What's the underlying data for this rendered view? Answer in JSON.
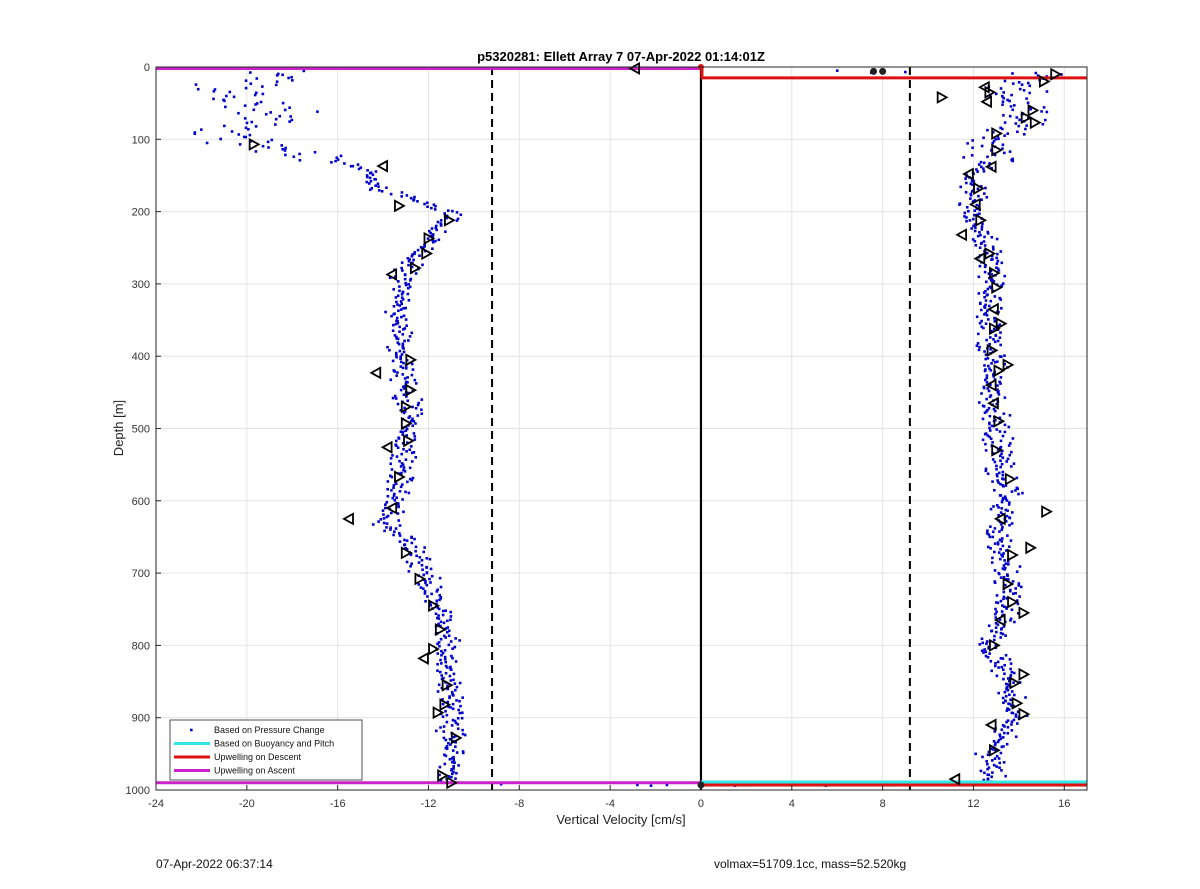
{
  "chart_data": {
    "type": "scatter",
    "title": "p5320281: Ellett Array 7 07-Apr-2022 01:14:01Z",
    "xlabel": "Vertical Velocity [cm/s]",
    "ylabel": "Depth [m]",
    "xlim": [
      -24,
      17
    ],
    "ylim": [
      0,
      1000
    ],
    "y_reversed": true,
    "x_ticks": [
      -24,
      -20,
      -16,
      -12,
      -8,
      -4,
      0,
      4,
      8,
      12,
      16
    ],
    "y_ticks": [
      0,
      100,
      200,
      300,
      400,
      500,
      600,
      700,
      800,
      900,
      1000
    ],
    "grid": true,
    "legend_position": "bottom-left",
    "legend": [
      {
        "label": "Based on Pressure Change",
        "color": "#0000cc",
        "kind": "dot"
      },
      {
        "label": "Based on Buoyancy and Pitch",
        "color": "#33e6e6",
        "kind": "line"
      },
      {
        "label": "Upwelling on Descent",
        "color": "#dd1111",
        "kind": "line"
      },
      {
        "label": "Upwelling on Ascent",
        "color": "#cc22cc",
        "kind": "line"
      }
    ],
    "reference_lines": {
      "vertical_solid": [
        0
      ],
      "vertical_dashed": [
        -9.2,
        9.2
      ]
    },
    "upwelling_on_descent": {
      "x": [
        0,
        17
      ],
      "depth": [
        15,
        15
      ],
      "bottom_depth": 993
    },
    "upwelling_on_ascent": {
      "x": [
        -24,
        0
      ],
      "depth": [
        2,
        2
      ],
      "bottom_depth": 990
    },
    "buoyancy_pitch_line": {
      "x": [
        0,
        17
      ],
      "depth": [
        989,
        989
      ]
    },
    "descent_profile": {
      "depth": [
        0,
        20,
        40,
        60,
        80,
        100,
        130,
        160,
        200,
        250,
        300,
        350,
        400,
        450,
        500,
        550,
        600,
        650,
        700,
        750,
        800,
        850,
        900,
        950,
        990
      ],
      "velocity": [
        15.5,
        14.5,
        13.5,
        14.5,
        14.2,
        13.0,
        12.5,
        12.0,
        12.0,
        12.5,
        12.8,
        12.8,
        12.8,
        12.8,
        13.0,
        13.2,
        13.5,
        13.0,
        13.5,
        13.5,
        12.7,
        13.5,
        13.8,
        12.8,
        12.8
      ]
    },
    "ascent_profile": {
      "depth": [
        5,
        30,
        60,
        90,
        110,
        140,
        170,
        200,
        240,
        280,
        320,
        360,
        400,
        440,
        480,
        520,
        560,
        600,
        630,
        660,
        700,
        740,
        780,
        820,
        860,
        900,
        950,
        990
      ],
      "velocity": [
        -18.0,
        -21.0,
        -19.0,
        -20.5,
        -19.5,
        -15.0,
        -14.0,
        -11.0,
        -12.0,
        -13.0,
        -13.3,
        -13.2,
        -13.3,
        -13.0,
        -12.8,
        -13.0,
        -13.2,
        -13.5,
        -14.0,
        -12.8,
        -12.2,
        -11.7,
        -11.3,
        -11.2,
        -11.0,
        -11.0,
        -11.0,
        -11.0
      ]
    },
    "surface_points": [
      {
        "x": -2.8,
        "depth": 2
      },
      {
        "x": -0.8,
        "depth": 1
      },
      {
        "x": 6.0,
        "depth": 5
      },
      {
        "x": 7.5,
        "depth": 8
      },
      {
        "x": 8.0,
        "depth": 6
      },
      {
        "x": 9.0,
        "depth": 7
      }
    ],
    "bottom_points": [
      {
        "x": -1.5,
        "depth": 993
      },
      {
        "x": -2.2,
        "depth": 994
      },
      {
        "x": -2.8,
        "depth": 993
      },
      {
        "x": -8.8,
        "depth": 992
      },
      {
        "x": 1.5,
        "depth": 994
      },
      {
        "x": 5.5,
        "depth": 994
      }
    ],
    "descent_triangles": [
      {
        "x": 15.6,
        "depth": 10,
        "dir": "right"
      },
      {
        "x": 15.1,
        "depth": 20,
        "dir": "right"
      },
      {
        "x": 12.5,
        "depth": 28,
        "dir": "left"
      },
      {
        "x": 12.7,
        "depth": 35,
        "dir": "right"
      },
      {
        "x": 10.6,
        "depth": 42,
        "dir": "right"
      },
      {
        "x": 12.6,
        "depth": 48,
        "dir": "left"
      },
      {
        "x": 14.6,
        "depth": 60,
        "dir": "right"
      },
      {
        "x": 14.3,
        "depth": 70,
        "dir": "right"
      },
      {
        "x": 14.7,
        "depth": 77,
        "dir": "right"
      },
      {
        "x": 13.0,
        "depth": 92,
        "dir": "right"
      },
      {
        "x": 13.0,
        "depth": 115,
        "dir": "right"
      },
      {
        "x": 12.8,
        "depth": 138,
        "dir": "left"
      },
      {
        "x": 11.8,
        "depth": 148,
        "dir": "left"
      },
      {
        "x": 12.2,
        "depth": 168,
        "dir": "right"
      },
      {
        "x": 12.1,
        "depth": 190,
        "dir": "left"
      },
      {
        "x": 12.3,
        "depth": 212,
        "dir": "right"
      },
      {
        "x": 11.5,
        "depth": 232,
        "dir": "left"
      },
      {
        "x": 12.7,
        "depth": 258,
        "dir": "right"
      },
      {
        "x": 12.3,
        "depth": 265,
        "dir": "left"
      },
      {
        "x": 12.9,
        "depth": 285,
        "dir": "right"
      },
      {
        "x": 13.0,
        "depth": 305,
        "dir": "right"
      },
      {
        "x": 12.9,
        "depth": 335,
        "dir": "left"
      },
      {
        "x": 13.2,
        "depth": 355,
        "dir": "right"
      },
      {
        "x": 12.9,
        "depth": 362,
        "dir": "right"
      },
      {
        "x": 12.8,
        "depth": 392,
        "dir": "right"
      },
      {
        "x": 13.5,
        "depth": 412,
        "dir": "right"
      },
      {
        "x": 13.1,
        "depth": 420,
        "dir": "right"
      },
      {
        "x": 12.8,
        "depth": 440,
        "dir": "left"
      },
      {
        "x": 12.9,
        "depth": 465,
        "dir": "left"
      },
      {
        "x": 13.1,
        "depth": 490,
        "dir": "right"
      },
      {
        "x": 13.0,
        "depth": 530,
        "dir": "right"
      },
      {
        "x": 13.6,
        "depth": 570,
        "dir": "right"
      },
      {
        "x": 15.2,
        "depth": 615,
        "dir": "right"
      },
      {
        "x": 13.2,
        "depth": 625,
        "dir": "left"
      },
      {
        "x": 14.5,
        "depth": 665,
        "dir": "right"
      },
      {
        "x": 13.7,
        "depth": 675,
        "dir": "right"
      },
      {
        "x": 13.5,
        "depth": 715,
        "dir": "right"
      },
      {
        "x": 13.7,
        "depth": 740,
        "dir": "right"
      },
      {
        "x": 14.2,
        "depth": 755,
        "dir": "right"
      },
      {
        "x": 13.2,
        "depth": 765,
        "dir": "left"
      },
      {
        "x": 12.9,
        "depth": 800,
        "dir": "right"
      },
      {
        "x": 14.2,
        "depth": 840,
        "dir": "right"
      },
      {
        "x": 13.8,
        "depth": 852,
        "dir": "right"
      },
      {
        "x": 13.9,
        "depth": 880,
        "dir": "right"
      },
      {
        "x": 14.2,
        "depth": 895,
        "dir": "right"
      },
      {
        "x": 12.8,
        "depth": 910,
        "dir": "left"
      },
      {
        "x": 12.9,
        "depth": 945,
        "dir": "right"
      },
      {
        "x": 11.2,
        "depth": 985,
        "dir": "left"
      }
    ],
    "ascent_triangles": [
      {
        "x": -2.9,
        "depth": 2,
        "dir": "left"
      },
      {
        "x": -19.7,
        "depth": 107,
        "dir": "right"
      },
      {
        "x": -14.0,
        "depth": 137,
        "dir": "left"
      },
      {
        "x": -13.3,
        "depth": 192,
        "dir": "right"
      },
      {
        "x": -11.1,
        "depth": 212,
        "dir": "right"
      },
      {
        "x": -12.0,
        "depth": 237,
        "dir": "right"
      },
      {
        "x": -12.1,
        "depth": 258,
        "dir": "right"
      },
      {
        "x": -12.6,
        "depth": 278,
        "dir": "right"
      },
      {
        "x": -13.6,
        "depth": 287,
        "dir": "left"
      },
      {
        "x": -12.8,
        "depth": 405,
        "dir": "right"
      },
      {
        "x": -14.3,
        "depth": 423,
        "dir": "left"
      },
      {
        "x": -12.8,
        "depth": 447,
        "dir": "right"
      },
      {
        "x": -13.0,
        "depth": 470,
        "dir": "right"
      },
      {
        "x": -13.0,
        "depth": 493,
        "dir": "right"
      },
      {
        "x": -12.9,
        "depth": 517,
        "dir": "right"
      },
      {
        "x": -13.8,
        "depth": 526,
        "dir": "left"
      },
      {
        "x": -13.3,
        "depth": 567,
        "dir": "right"
      },
      {
        "x": -13.6,
        "depth": 610,
        "dir": "left"
      },
      {
        "x": -15.5,
        "depth": 625,
        "dir": "left"
      },
      {
        "x": -13.0,
        "depth": 672,
        "dir": "right"
      },
      {
        "x": -12.4,
        "depth": 708,
        "dir": "right"
      },
      {
        "x": -11.8,
        "depth": 745,
        "dir": "right"
      },
      {
        "x": -11.5,
        "depth": 778,
        "dir": "right"
      },
      {
        "x": -11.8,
        "depth": 805,
        "dir": "right"
      },
      {
        "x": -12.2,
        "depth": 818,
        "dir": "left"
      },
      {
        "x": -11.2,
        "depth": 855,
        "dir": "right"
      },
      {
        "x": -11.3,
        "depth": 882,
        "dir": "right"
      },
      {
        "x": -11.6,
        "depth": 893,
        "dir": "right"
      },
      {
        "x": -10.8,
        "depth": 928,
        "dir": "right"
      },
      {
        "x": -11.4,
        "depth": 980,
        "dir": "right"
      },
      {
        "x": -11.0,
        "depth": 990,
        "dir": "right"
      }
    ],
    "colors": {
      "points": "#0000cc",
      "descent_line": "#dd1111",
      "ascent_line": "#cc22cc",
      "buoyancy_line": "#33e6e6",
      "triangles": "#000000",
      "grid": "#e4e4e4"
    }
  },
  "footer": {
    "timestamp": "07-Apr-2022 06:37:14",
    "vehicle_info": "volmax=51709.1cc, mass=52.520kg"
  }
}
